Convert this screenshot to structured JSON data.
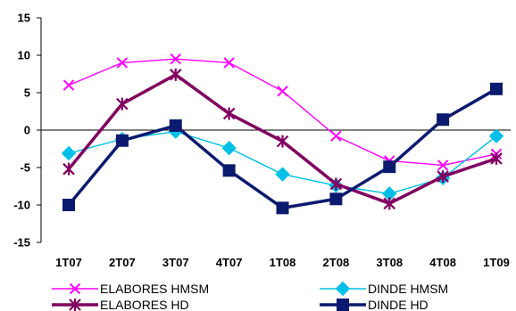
{
  "chart_data": {
    "type": "line",
    "categories": [
      "1T07",
      "2T07",
      "3T07",
      "4T07",
      "1T08",
      "2T08",
      "3T08",
      "4T08",
      "1T09"
    ],
    "ylim": [
      -15,
      15
    ],
    "yticks": [
      "15",
      "10",
      "5",
      "0",
      "-5",
      "-10",
      "-15"
    ],
    "grid": false,
    "legend_position": "bottom",
    "series": [
      {
        "name": "ELABORES HMSM",
        "color": "#ff00ff",
        "marker": "x",
        "values": [
          6,
          9,
          9.5,
          9,
          5.2,
          -0.8,
          -4.1,
          -4.7,
          -3.2
        ]
      },
      {
        "name": "DINDE HMSM",
        "color": "#00c0e8",
        "marker": "diamond",
        "values": [
          -3.1,
          -1.2,
          -0.2,
          -2.4,
          -5.9,
          -7.4,
          -8.5,
          -6.4,
          -0.8
        ]
      },
      {
        "name": "ELABORES HD",
        "color": "#800060",
        "marker": "star",
        "values": [
          -5.2,
          3.5,
          7.4,
          2.2,
          -1.5,
          -7.2,
          -9.8,
          -6.2,
          -3.8
        ]
      },
      {
        "name": "DINDE HD",
        "color": "#0a1a6e",
        "marker": "square",
        "values": [
          -10,
          -1.4,
          0.6,
          -5.4,
          -10.4,
          -9.2,
          -4.9,
          1.4,
          5.5
        ]
      }
    ]
  }
}
